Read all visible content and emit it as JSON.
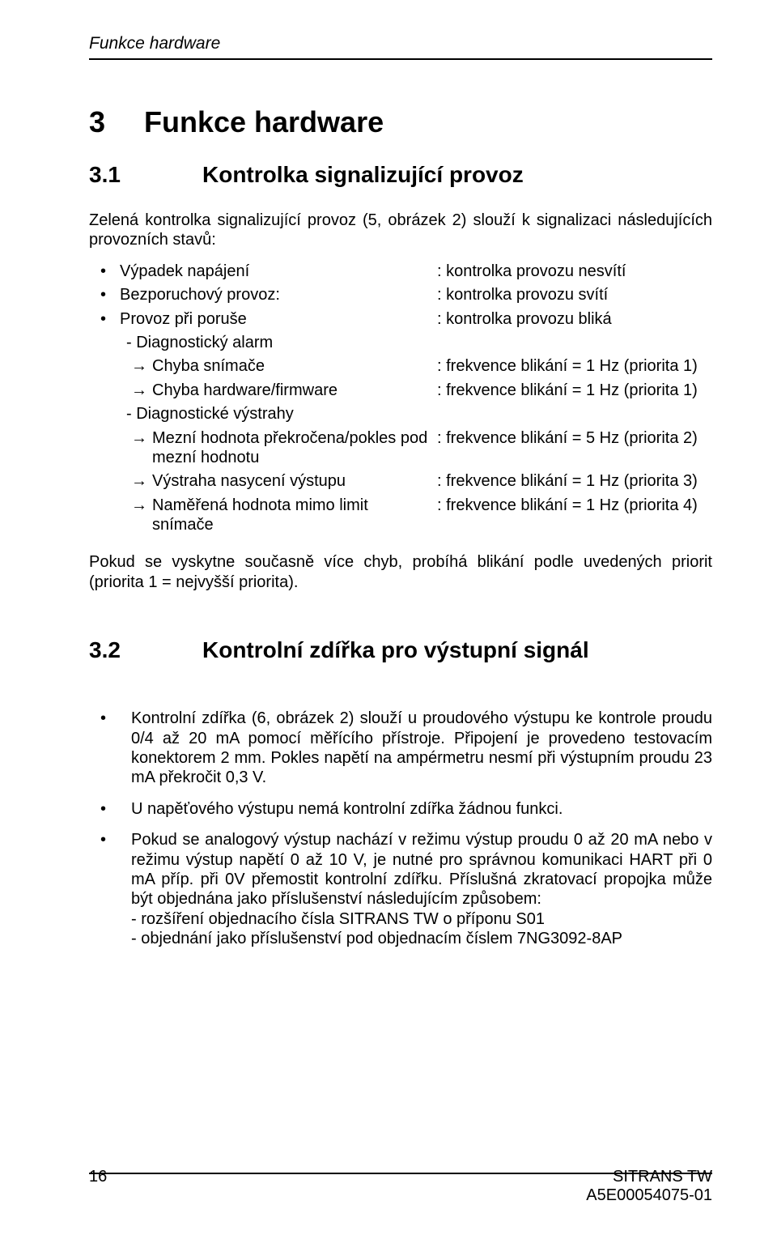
{
  "header": {
    "running_title": "Funkce hardware"
  },
  "section3": {
    "number": "3",
    "title": "Funkce hardware"
  },
  "section31": {
    "number": "3.1",
    "title": "Kontrolka signalizující provoz",
    "intro": "Zelená kontrolka signalizující provoz (5, obrázek 2) slouží k signalizaci následujících provozních stavů:",
    "items": {
      "a_label": "Výpadek napájení",
      "a_value": ": kontrolka provozu nesvítí",
      "b_label": "Bezporuchový provoz:",
      "b_value": ": kontrolka provozu svítí",
      "c_label": "Provoz při poruše",
      "c_value": ": kontrolka provozu bliká",
      "diag_alarm": "- Diagnostický alarm",
      "da1_label": "Chyba snímače",
      "da1_value": ": frekvence blikání = 1 Hz (priorita 1)",
      "da2_label": "Chyba hardware/firmware",
      "da2_value": ": frekvence blikání = 1 Hz (priorita 1)",
      "diag_warn": "- Diagnostické výstrahy",
      "dw1_label": "Mezní hodnota překročena/pokles pod mezní hodnotu",
      "dw1_value": ": frekvence blikání = 5 Hz (priorita 2)",
      "dw2_label": "Výstraha nasycení výstupu",
      "dw2_value": ": frekvence blikání = 1 Hz (priorita 3)",
      "dw3_label": "Naměřená hodnota mimo limit snímače",
      "dw3_value": ": frekvence blikání = 1 Hz (priorita 4)"
    },
    "note": "Pokud se vyskytne současně více chyb, probíhá blikání podle uvedených priorit (priorita 1 = nejvyšší priorita)."
  },
  "section32": {
    "number": "3.2",
    "title": "Kontrolní zdířka pro výstupní signál",
    "b1": "Kontrolní zdířka (6, obrázek 2) slouží u proudového výstupu ke kontrole proudu 0/4 až 20 mA pomocí měřícího přístroje. Připojení je provedeno testovacím konektorem 2 mm. Pokles napětí na ampérmetru nesmí při výstupním proudu 23 mA překročit 0,3 V.",
    "b2": "U napěťového výstupu nemá kontrolní zdířka žádnou funkci.",
    "b3": "Pokud se analogový výstup nachází v režimu výstup proudu 0 až 20 mA nebo v režimu výstup napětí 0 až 10 V, je nutné pro správnou komunikaci HART při 0 mA příp. při 0V přemostit kontrolní zdířku. Příslušná zkratovací propojka může být objednána jako příslušenství následujícím způsobem:",
    "b3a": "- rozšíření objednacího čísla SITRANS TW o příponu S01",
    "b3b": "- objednání jako příslušenství pod objednacím číslem 7NG3092-8AP"
  },
  "footer": {
    "page": "16",
    "product": "SITRANS TW",
    "docnum": "A5E00054075-01"
  },
  "glyphs": {
    "bullet": "•",
    "arrow": "→"
  }
}
